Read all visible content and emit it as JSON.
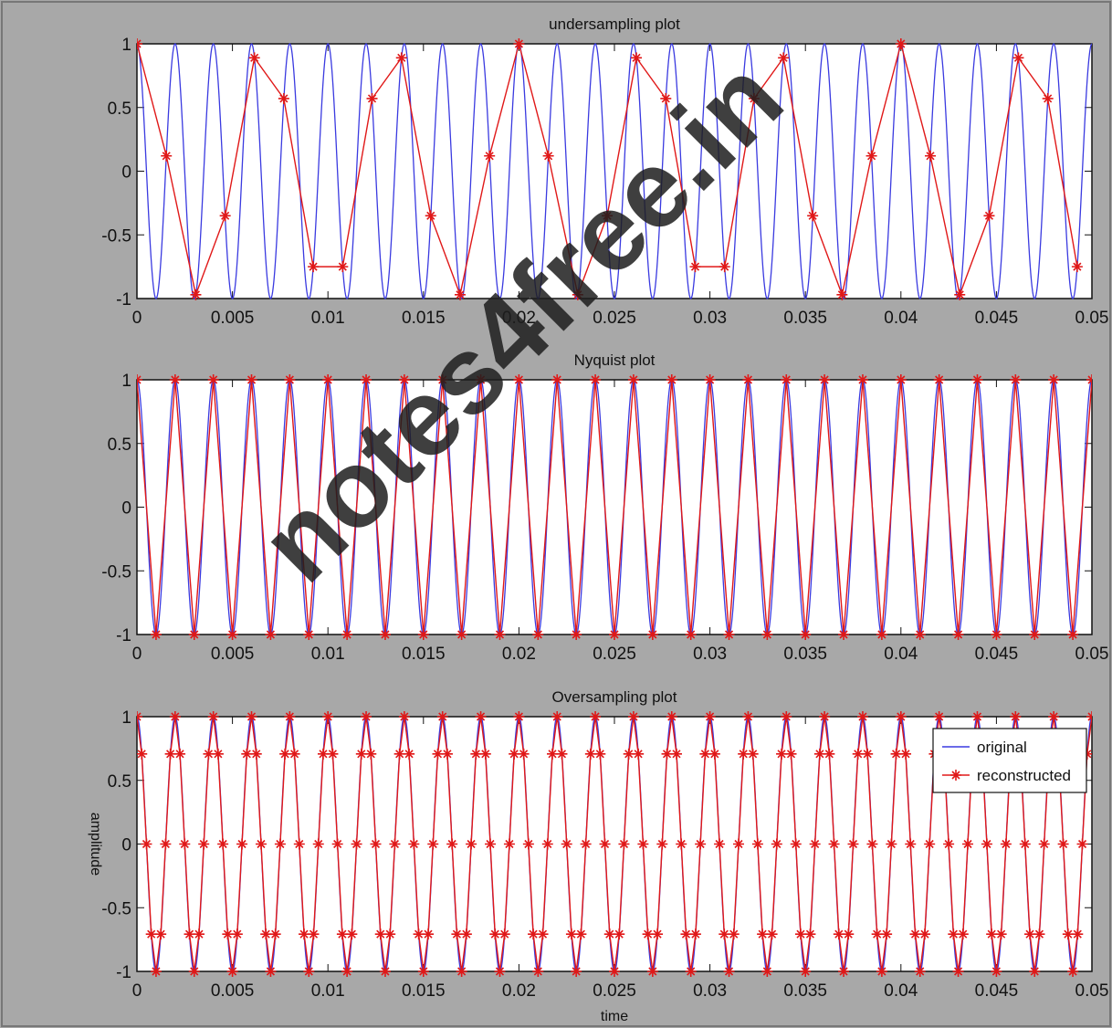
{
  "watermark": "notes4free.in",
  "colors": {
    "original": "#3a3ae0",
    "reconstructed": "#e01818",
    "figure_bg": "#a8a8a8",
    "axes_bg": "#ffffff"
  },
  "chart_data": [
    {
      "type": "line",
      "title": "undersampling plot",
      "xlabel": "",
      "ylabel": "",
      "xlim": [
        0,
        0.05
      ],
      "ylim": [
        -1,
        1
      ],
      "x_ticks": [
        "0",
        "0.005",
        "0.01",
        "0.015",
        "0.02",
        "0.025",
        "0.03",
        "0.035",
        "0.04",
        "0.045",
        "0.05"
      ],
      "y_ticks": [
        "1",
        "0.5",
        "0",
        "-0.5",
        "-1"
      ],
      "grid": false,
      "series": [
        {
          "role": "original",
          "signal": "cos",
          "frequency_hz": 500,
          "marker": "none"
        },
        {
          "role": "reconstructed",
          "marker": "*",
          "x": [
            0,
            0.00154,
            0.00308,
            0.00462,
            0.00615,
            0.00769,
            0.00923,
            0.01077,
            0.01231,
            0.01385,
            0.01538,
            0.01692,
            0.01846,
            0.02,
            0.02154,
            0.02308,
            0.02462,
            0.02615,
            0.02769,
            0.02923,
            0.03077,
            0.03231,
            0.03385,
            0.03538,
            0.03692,
            0.03846,
            0.04,
            0.04154,
            0.04308,
            0.04462,
            0.04615,
            0.04769,
            0.04923
          ],
          "y": [
            1,
            0.12,
            -0.97,
            -0.35,
            0.89,
            0.57,
            -0.75,
            -0.75,
            0.57,
            0.89,
            -0.35,
            -0.97,
            0.12,
            1,
            0.12,
            -0.97,
            -0.35,
            0.89,
            0.57,
            -0.75,
            -0.75,
            0.57,
            0.89,
            -0.35,
            -0.97,
            0.12,
            1,
            0.12,
            -0.97,
            -0.35,
            0.89,
            0.57,
            -0.75
          ]
        }
      ]
    },
    {
      "type": "line",
      "title": "Nyquist plot",
      "xlabel": "",
      "ylabel": "",
      "xlim": [
        0,
        0.05
      ],
      "ylim": [
        -1,
        1
      ],
      "x_ticks": [
        "0",
        "0.005",
        "0.01",
        "0.015",
        "0.02",
        "0.025",
        "0.03",
        "0.035",
        "0.04",
        "0.045",
        "0.05"
      ],
      "y_ticks": [
        "1",
        "0.5",
        "0",
        "-0.5",
        "-1"
      ],
      "grid": false,
      "series": [
        {
          "role": "original",
          "signal": "cos",
          "frequency_hz": 500,
          "marker": "none"
        },
        {
          "role": "reconstructed",
          "marker": "*",
          "signal": "cos",
          "frequency_hz": 500,
          "sample_rate_hz": 1000
        }
      ]
    },
    {
      "type": "line",
      "title": "Oversampling plot",
      "xlabel": "time",
      "ylabel": "amplitude",
      "xlim": [
        0,
        0.05
      ],
      "ylim": [
        -1,
        1
      ],
      "x_ticks": [
        "0",
        "0.005",
        "0.01",
        "0.015",
        "0.02",
        "0.025",
        "0.03",
        "0.035",
        "0.04",
        "0.045",
        "0.05"
      ],
      "y_ticks": [
        "1",
        "0.5",
        "0",
        "-0.5",
        "-1"
      ],
      "grid": false,
      "legend": {
        "placement": "top-right",
        "entries": [
          "original",
          "reconstructed"
        ]
      },
      "series": [
        {
          "role": "original",
          "name": "original",
          "signal": "cos",
          "frequency_hz": 500,
          "marker": "none"
        },
        {
          "role": "reconstructed",
          "name": "reconstructed",
          "marker": "*",
          "signal": "cos",
          "frequency_hz": 500,
          "sample_rate_hz": 4000
        }
      ]
    }
  ]
}
